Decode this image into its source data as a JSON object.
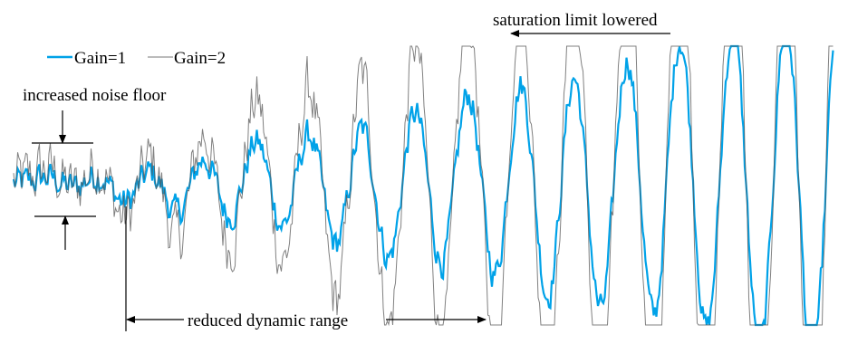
{
  "legend": {
    "items": [
      {
        "label": "Gain=1",
        "color": "#00a2e8"
      },
      {
        "label": "Gain=2",
        "color": "#6f6f6f"
      }
    ]
  },
  "annotations": {
    "noise_floor": "increased noise floor",
    "saturation": "saturation limit lowered",
    "dynamic_range": "reduced dynamic range"
  },
  "signal": {
    "gains": [
      1,
      2
    ],
    "cycles_shown": 15
  }
}
